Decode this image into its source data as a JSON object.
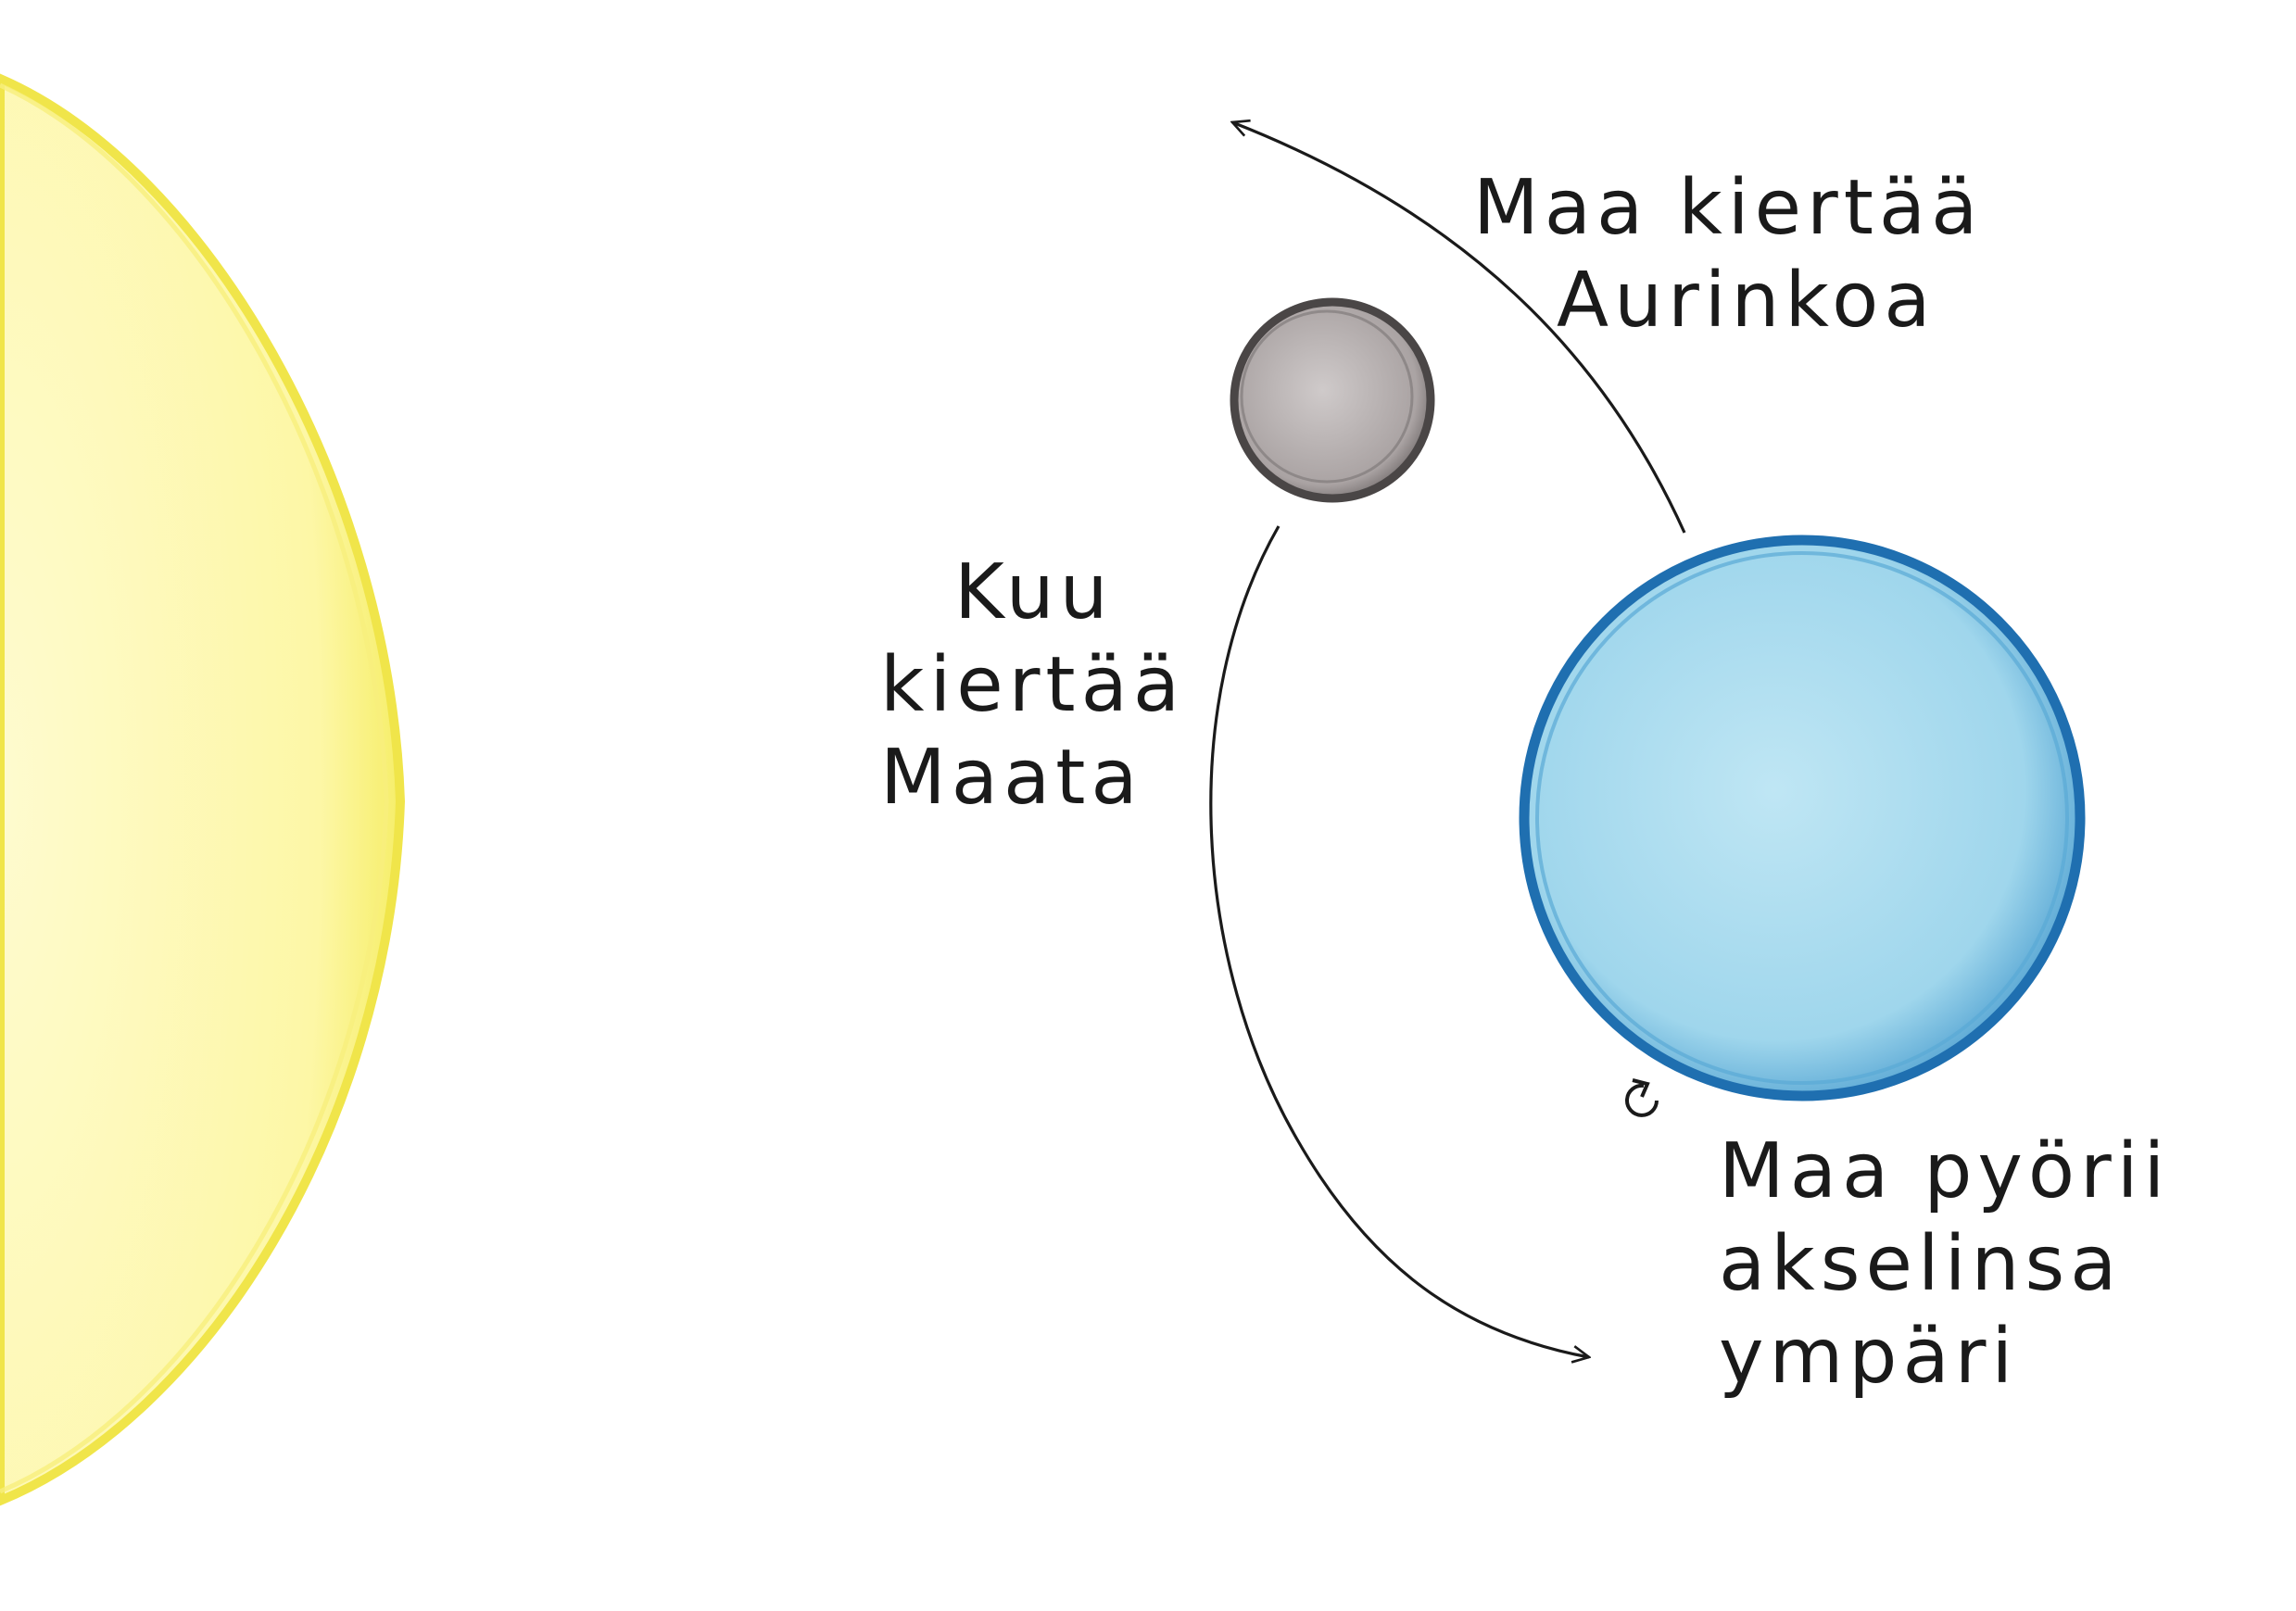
{
  "labels": {
    "earth_orbits_sun": [
      "Maa kiertää",
      "Aurinkoa"
    ],
    "moon_orbits_earth": [
      "Kuu",
      "kiertää",
      "Maata"
    ],
    "earth_rotates": [
      "Maa pyörii",
      "akselinsa",
      "ympäri"
    ]
  },
  "colors": {
    "sun_fill": "#fdf8a0",
    "sun_edge": "#f2e84a",
    "earth_fill": "#a9dcee",
    "earth_edge": "#1f6fb0",
    "moon_fill": "#b8b2b2",
    "moon_edge": "#4a4646",
    "ink": "#1a1a1a"
  },
  "icons": {
    "rotation": "counterclockwise-rotation-icon"
  }
}
